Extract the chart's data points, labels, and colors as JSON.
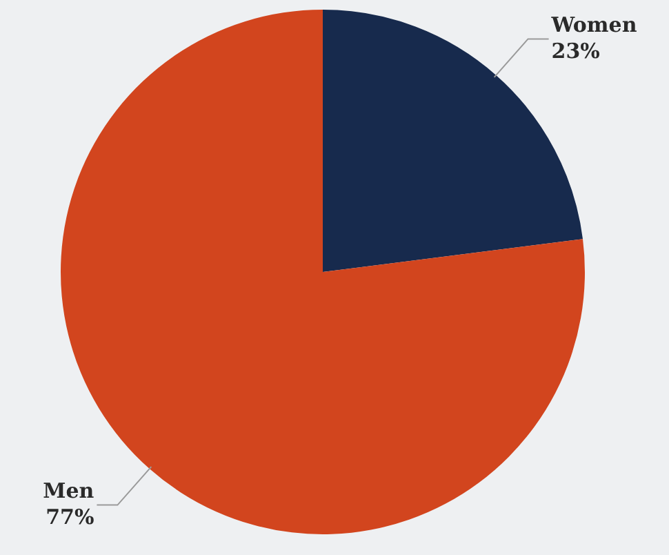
{
  "chart_data": {
    "type": "pie",
    "categories": [
      "Women",
      "Men"
    ],
    "values": [
      23,
      77
    ],
    "colors": [
      "#172a4d",
      "#d2451e"
    ],
    "value_labels": [
      "23%",
      "77%"
    ],
    "legend": false
  }
}
